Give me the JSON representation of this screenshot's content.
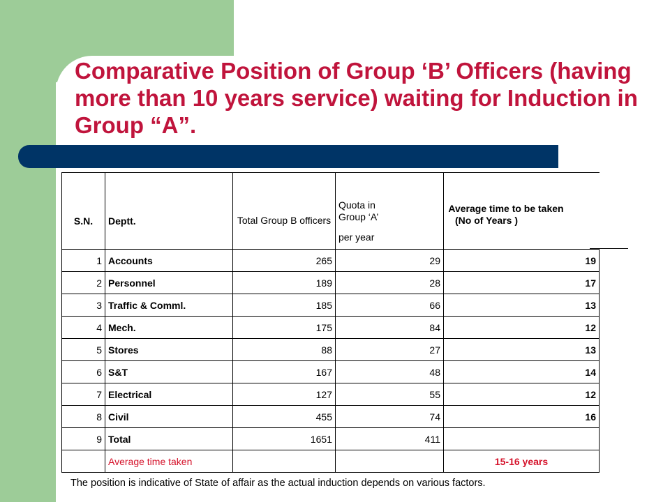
{
  "title": "Comparative Position of Group ‘B’ Officers (having more than 10 years service) waiting for Induction in Group “A”.",
  "table": {
    "headers": {
      "sn": "S.N.",
      "dept": "Deptt.",
      "total": "Total Group B officers",
      "quota_line1": "Quota in Group ‘A’",
      "quota_line2": "per year",
      "avg_line1": "Average time to be taken",
      "avg_line2": "(No of Years )"
    },
    "rows": [
      {
        "sn": "1",
        "dept": "Accounts",
        "total": "265",
        "quota": "29",
        "avg": "19"
      },
      {
        "sn": "2",
        "dept": "Personnel",
        "total": "189",
        "quota": "28",
        "avg": "17"
      },
      {
        "sn": "3",
        "dept": "Traffic & Comml.",
        "total": "185",
        "quota": "66",
        "avg": "13"
      },
      {
        "sn": "4",
        "dept": "Mech.",
        "total": "175",
        "quota": "84",
        "avg": "12"
      },
      {
        "sn": "5",
        "dept": "Stores",
        "total": "88",
        "quota": "27",
        "avg": "13"
      },
      {
        "sn": "6",
        "dept": "S&T",
        "total": "167",
        "quota": "48",
        "avg": "14"
      },
      {
        "sn": "7",
        "dept": "Electrical",
        "total": "127",
        "quota": "55",
        "avg": "12"
      },
      {
        "sn": "8",
        "dept": "Civil",
        "total": "455",
        "quota": "74",
        "avg": "16"
      },
      {
        "sn": "9",
        "dept": "Total",
        "total": "1651",
        "quota": "411",
        "avg": ""
      }
    ],
    "footer": {
      "label": "Average time taken",
      "value": "15-16 years"
    }
  },
  "note": "The position is indicative of State of affair as the actual induction depends on various factors.",
  "colors": {
    "title": "#c0143c",
    "green": "#9dcc98",
    "blue_bar": "#003466",
    "red_text": "#d5132b"
  }
}
